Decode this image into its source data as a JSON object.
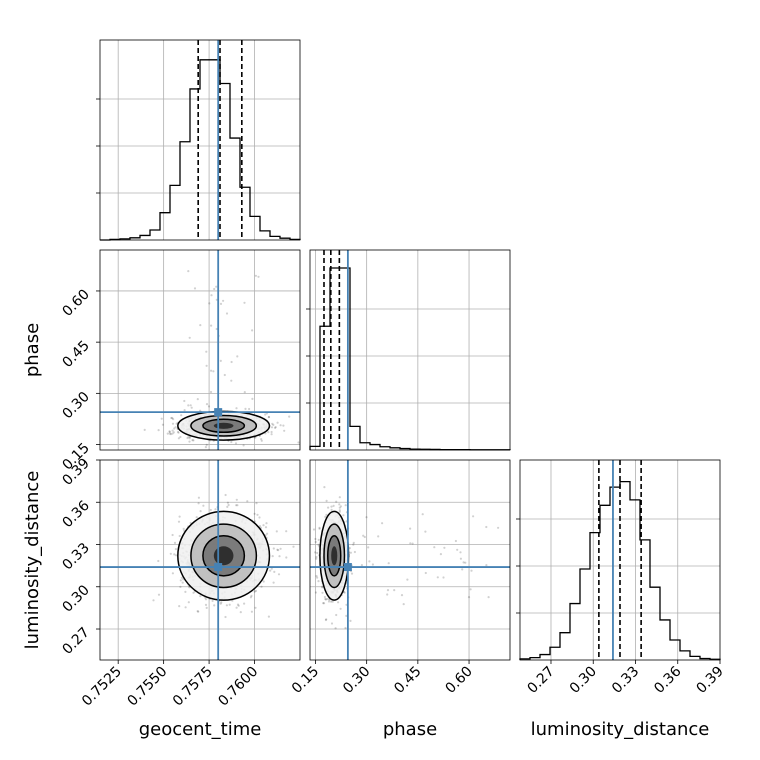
{
  "chart_data": {
    "type": "corner",
    "parameters": [
      "geocent_time",
      "phase",
      "luminosity_distance"
    ],
    "ranges": {
      "geocent_time": [
        0.7515,
        0.7625
      ],
      "phase": [
        0.134,
        0.72
      ],
      "luminosity_distance": [
        0.248,
        0.39
      ]
    },
    "ticks": {
      "geocent_time": [
        "0.7525",
        "0.7550",
        "0.7575",
        "0.7600"
      ],
      "phase": [
        "0.15",
        "0.30",
        "0.45",
        "0.60"
      ],
      "luminosity_distance": [
        "0.27",
        "0.30",
        "0.33",
        "0.36",
        "0.39"
      ]
    },
    "truths": {
      "geocent_time": 0.758,
      "phase": 0.245,
      "luminosity_distance": 0.314
    },
    "quantiles": {
      "geocent_time": [
        0.7569,
        0.7581,
        0.7593
      ],
      "phase": [
        0.175,
        0.195,
        0.22
      ],
      "luminosity_distance": [
        0.304,
        0.319,
        0.334
      ]
    },
    "histograms": {
      "geocent_time": [
        0,
        0.003,
        0.006,
        0.012,
        0.025,
        0.055,
        0.15,
        0.3,
        0.54,
        0.83,
        0.99,
        0.99,
        0.86,
        0.56,
        0.29,
        0.13,
        0.05,
        0.02,
        0.01,
        0.003
      ],
      "phase": [
        0.02,
        0.68,
        1.0,
        1.0,
        0.13,
        0.04,
        0.03,
        0.018,
        0.012,
        0.008,
        0.005,
        0.004,
        0.003,
        0.002,
        0.002,
        0.002,
        0.001,
        0.001,
        0.001,
        0.001
      ],
      "luminosity_distance": [
        0.006,
        0.013,
        0.03,
        0.07,
        0.15,
        0.31,
        0.5,
        0.7,
        0.85,
        0.95,
        0.98,
        0.88,
        0.66,
        0.4,
        0.22,
        0.11,
        0.05,
        0.02,
        0.008,
        0.004
      ]
    },
    "grid": true,
    "contour_levels": 3
  },
  "colors": {
    "truth_line": "#4682b4",
    "hist_line": "#000000",
    "grid": "#b0b0b0",
    "points": "#000000"
  }
}
